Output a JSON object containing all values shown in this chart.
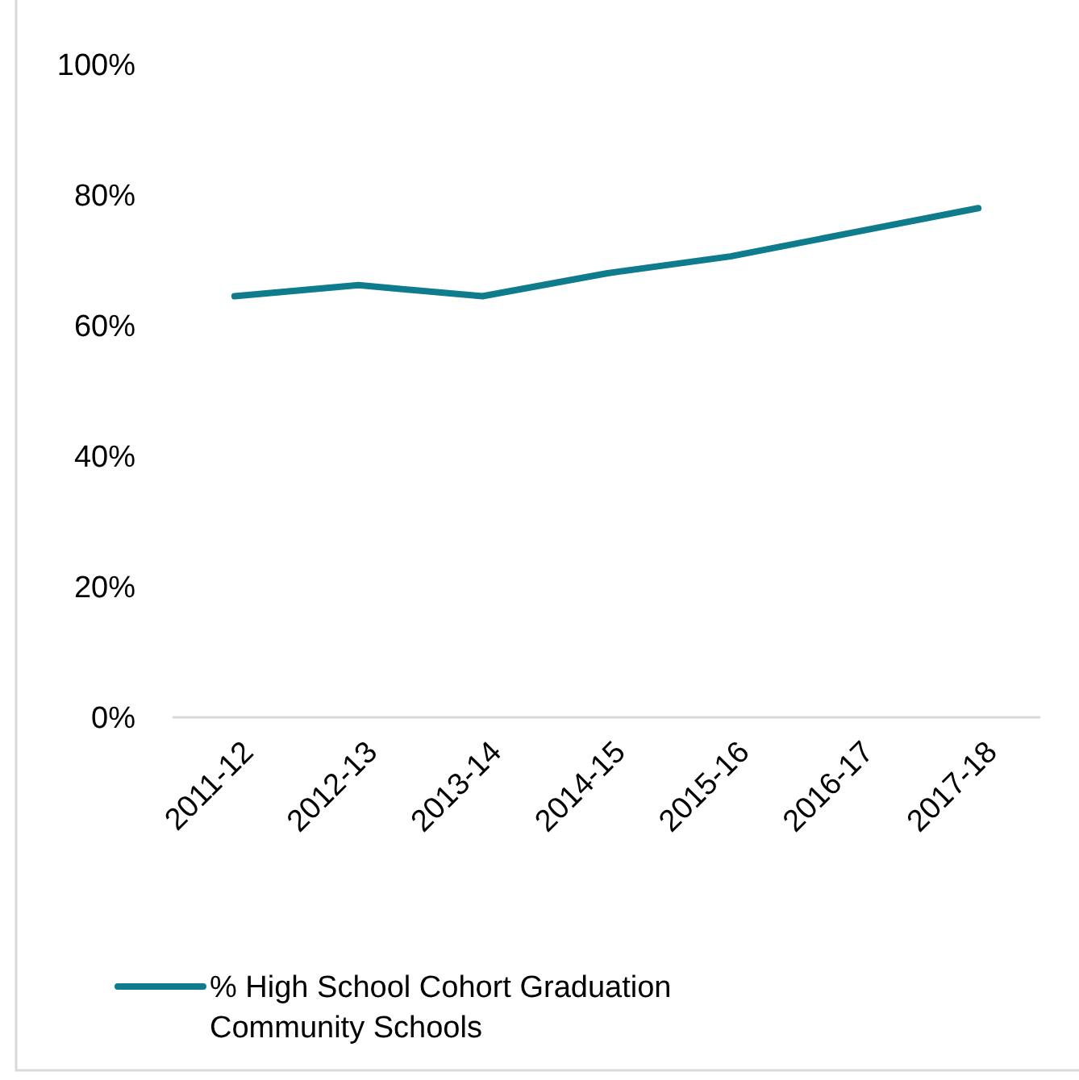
{
  "chart_data": {
    "type": "line",
    "categories": [
      "2011-12",
      "2012-13",
      "2013-14",
      "2014-15",
      "2015-16",
      "2016-17",
      "2017-18"
    ],
    "series": [
      {
        "name": "% High School Cohort Graduation Community Schools",
        "color": "#0e7c8c",
        "values": [
          64.5,
          66.2,
          64.5,
          68.0,
          70.6,
          74.3,
          78.0
        ]
      }
    ],
    "ylim": [
      0,
      100
    ],
    "yticks": [
      {
        "value": 0,
        "label": "0%"
      },
      {
        "value": 20,
        "label": "20%"
      },
      {
        "value": 40,
        "label": "40%"
      },
      {
        "value": 60,
        "label": "60%"
      },
      {
        "value": 80,
        "label": "80%"
      },
      {
        "value": 100,
        "label": "100%"
      }
    ],
    "grid": false,
    "legend": "bottom",
    "marker": "none",
    "line_style": "solid"
  }
}
